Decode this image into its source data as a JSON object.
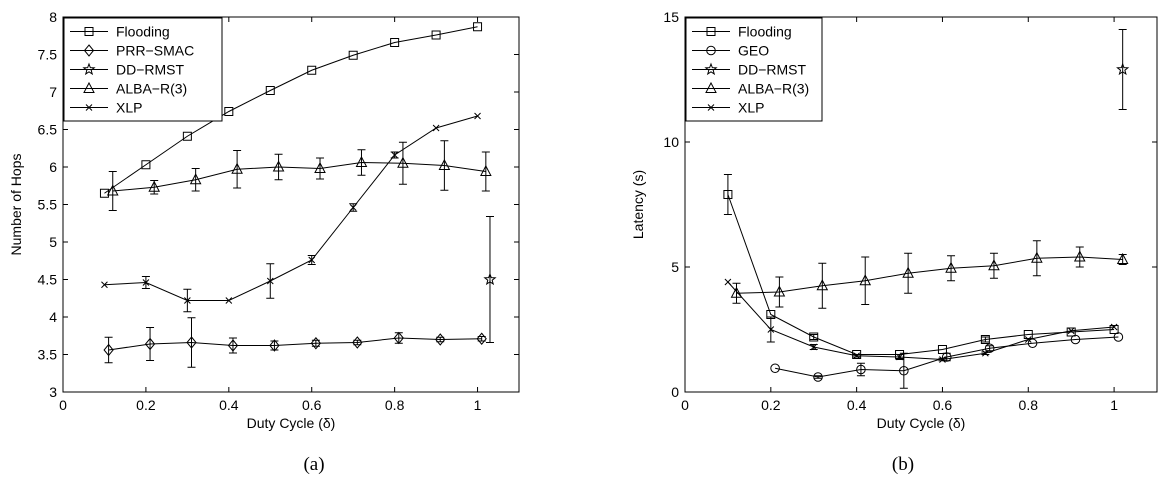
{
  "figure": {
    "captions": [
      "(a)",
      "(b)"
    ]
  },
  "chart_data": [
    {
      "type": "line",
      "xlabel": "Duty Cycle (δ)",
      "ylabel": "Number of Hops",
      "xlim": [
        0,
        1.1
      ],
      "ylim": [
        3,
        8
      ],
      "xticks": [
        0,
        0.2,
        0.4,
        0.6,
        0.8,
        1
      ],
      "yticks": [
        3,
        3.5,
        4,
        4.5,
        5,
        5.5,
        6,
        6.5,
        7,
        7.5,
        8
      ],
      "xtick_labels": [
        "0",
        "0.2",
        "0.4",
        "0.6",
        "0.8",
        "1"
      ],
      "ytick_labels": [
        "3",
        "3.5",
        "4",
        "4.5",
        "5",
        "5.5",
        "6",
        "6.5",
        "7",
        "7.5",
        "8"
      ],
      "grid": false,
      "legend_position": "top-left",
      "series": [
        {
          "name": "Flooding",
          "marker": "square",
          "x": [
            0.1,
            0.2,
            0.3,
            0.4,
            0.5,
            0.6,
            0.7,
            0.8,
            0.9,
            1.0
          ],
          "y": [
            5.65,
            6.03,
            6.41,
            6.74,
            7.02,
            7.29,
            7.49,
            7.66,
            7.76,
            7.87
          ],
          "err": [
            0,
            0,
            0,
            0,
            0,
            0,
            0,
            0,
            0,
            0
          ]
        },
        {
          "name": "PRR−SMAC",
          "marker": "diamond",
          "x": [
            0.11,
            0.21,
            0.31,
            0.41,
            0.51,
            0.61,
            0.71,
            0.81,
            0.91,
            1.01
          ],
          "y": [
            3.56,
            3.64,
            3.66,
            3.62,
            3.62,
            3.65,
            3.66,
            3.72,
            3.7,
            3.71
          ],
          "err": [
            0.17,
            0.22,
            0.33,
            0.1,
            0.06,
            0.04,
            0.03,
            0.07,
            0.03,
            0.03
          ]
        },
        {
          "name": "DD−RMST",
          "marker": "star",
          "x": [
            1.03
          ],
          "y": [
            4.5
          ],
          "err": [
            0.84
          ]
        },
        {
          "name": "ALBA−R(3)",
          "marker": "triangle",
          "x": [
            0.12,
            0.22,
            0.32,
            0.42,
            0.52,
            0.62,
            0.72,
            0.82,
            0.92,
            1.02
          ],
          "y": [
            5.68,
            5.73,
            5.83,
            5.97,
            6.0,
            5.98,
            6.06,
            6.05,
            6.02,
            5.94
          ],
          "err": [
            0.26,
            0.09,
            0.15,
            0.25,
            0.17,
            0.14,
            0.17,
            0.28,
            0.33,
            0.26
          ]
        },
        {
          "name": "XLP",
          "marker": "x",
          "x": [
            0.1,
            0.2,
            0.3,
            0.4,
            0.5,
            0.6,
            0.7,
            0.8,
            0.9,
            1.0
          ],
          "y": [
            4.43,
            4.46,
            4.22,
            4.22,
            4.48,
            4.76,
            5.46,
            6.16,
            6.52,
            6.68
          ],
          "err": [
            0,
            0.08,
            0.15,
            0,
            0.23,
            0.06,
            0.05,
            0.04,
            0,
            0
          ]
        }
      ]
    },
    {
      "type": "line",
      "xlabel": "Duty Cycle (δ)",
      "ylabel": "Latency (s)",
      "xlim": [
        0,
        1.1
      ],
      "ylim": [
        0,
        15
      ],
      "xticks": [
        0,
        0.2,
        0.4,
        0.6,
        0.8,
        1
      ],
      "yticks": [
        0,
        5,
        10,
        15
      ],
      "xtick_labels": [
        "0",
        "0.2",
        "0.4",
        "0.6",
        "0.8",
        "1"
      ],
      "ytick_labels": [
        "0",
        "5",
        "10",
        "15"
      ],
      "grid": false,
      "legend_position": "top-left",
      "series": [
        {
          "name": "Flooding",
          "marker": "square",
          "x": [
            0.1,
            0.2,
            0.3,
            0.4,
            0.5,
            0.6,
            0.7,
            0.8,
            0.9,
            1.0
          ],
          "y": [
            7.9,
            3.1,
            2.2,
            1.5,
            1.5,
            1.7,
            2.1,
            2.3,
            2.4,
            2.5
          ],
          "err": [
            0.8,
            0,
            0.1,
            0,
            0,
            0,
            0.1,
            0,
            0,
            0
          ]
        },
        {
          "name": "GEO",
          "marker": "circle",
          "x": [
            0.21,
            0.31,
            0.41,
            0.51,
            0.61,
            0.71,
            0.81,
            0.91,
            1.01
          ],
          "y": [
            0.95,
            0.6,
            0.9,
            0.85,
            1.4,
            1.75,
            1.95,
            2.1,
            2.2
          ],
          "err": [
            0,
            0.05,
            0.25,
            0.7,
            0.15,
            0.1,
            0,
            0,
            0
          ]
        },
        {
          "name": "DD−RMST",
          "marker": "star",
          "x": [
            1.02
          ],
          "y": [
            12.9
          ],
          "err": [
            1.6
          ]
        },
        {
          "name": "ALBA−R(3)",
          "marker": "triangle",
          "x": [
            0.12,
            0.22,
            0.32,
            0.42,
            0.52,
            0.62,
            0.72,
            0.82,
            0.92,
            1.02
          ],
          "y": [
            3.95,
            4.0,
            4.25,
            4.45,
            4.75,
            4.95,
            5.05,
            5.35,
            5.4,
            5.3
          ],
          "err": [
            0.4,
            0.6,
            0.9,
            0.95,
            0.8,
            0.5,
            0.5,
            0.7,
            0.4,
            0.2
          ]
        },
        {
          "name": "XLP",
          "marker": "x",
          "x": [
            0.1,
            0.2,
            0.3,
            0.4,
            0.5,
            0.6,
            0.7,
            0.8,
            0.9,
            1.0
          ],
          "y": [
            4.4,
            2.5,
            1.8,
            1.45,
            1.4,
            1.3,
            1.55,
            2.1,
            2.45,
            2.6
          ],
          "err": [
            0,
            0.5,
            0.1,
            0.05,
            0.1,
            0.05,
            0.05,
            0,
            0,
            0
          ]
        }
      ]
    }
  ]
}
